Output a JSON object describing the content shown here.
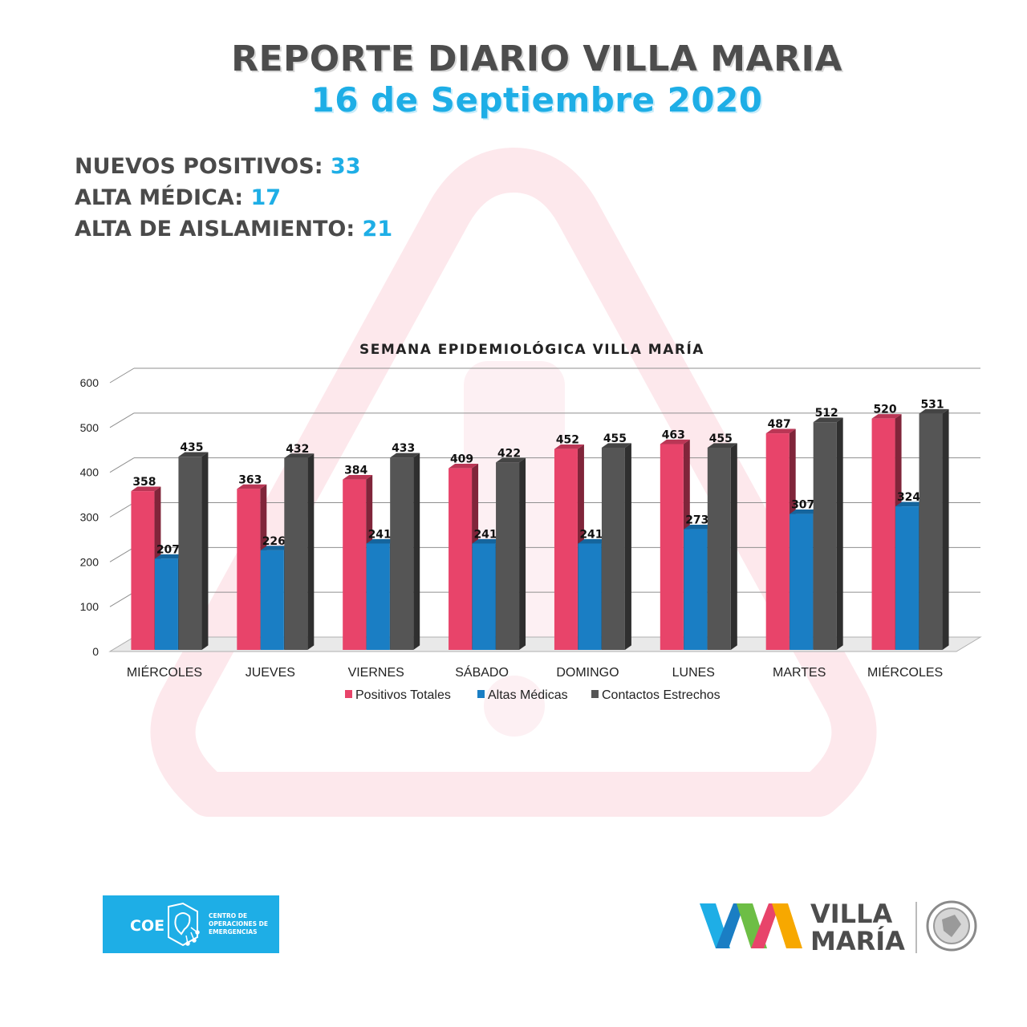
{
  "header": {
    "title": "REPORTE DIARIO VILLA MARIA",
    "date": "16 de Septiembre 2020"
  },
  "stats": [
    {
      "label": "NUEVOS POSITIVOS:",
      "value": "33"
    },
    {
      "label": "ALTA MÉDICA:",
      "value": "17"
    },
    {
      "label": "ALTA DE AISLAMIENTO:",
      "value": "21"
    }
  ],
  "chart_data": {
    "type": "bar",
    "title": "SEMANA EPIDEMIOLÓGICA VILLA MARÍA",
    "categories": [
      "MIÉRCOLES",
      "JUEVES",
      "VIERNES",
      "SÁBADO",
      "DOMINGO",
      "LUNES",
      "MARTES",
      "MIÉRCOLES"
    ],
    "series": [
      {
        "name": "Positivos Totales",
        "color": "#e8446a",
        "values": [
          358,
          363,
          384,
          409,
          452,
          463,
          487,
          520
        ]
      },
      {
        "name": "Altas Médicas",
        "color": "#1a7ec4",
        "values": [
          207,
          226,
          241,
          241,
          241,
          273,
          307,
          324
        ]
      },
      {
        "name": "Contactos Estrechos",
        "color": "#555555",
        "values": [
          435,
          432,
          433,
          422,
          455,
          455,
          512,
          531
        ]
      }
    ],
    "ylim": [
      0,
      600
    ],
    "yticks": [
      0,
      100,
      200,
      300,
      400,
      500,
      600
    ],
    "grid": true,
    "legend": "bottom"
  },
  "logos": {
    "coe": {
      "text": "COE",
      "subtitle": [
        "CENTRO DE",
        "OPERACIONES DE",
        "EMERGENCIAS"
      ]
    },
    "city": {
      "line1": "VILLA",
      "line2": "MARÍA"
    }
  }
}
